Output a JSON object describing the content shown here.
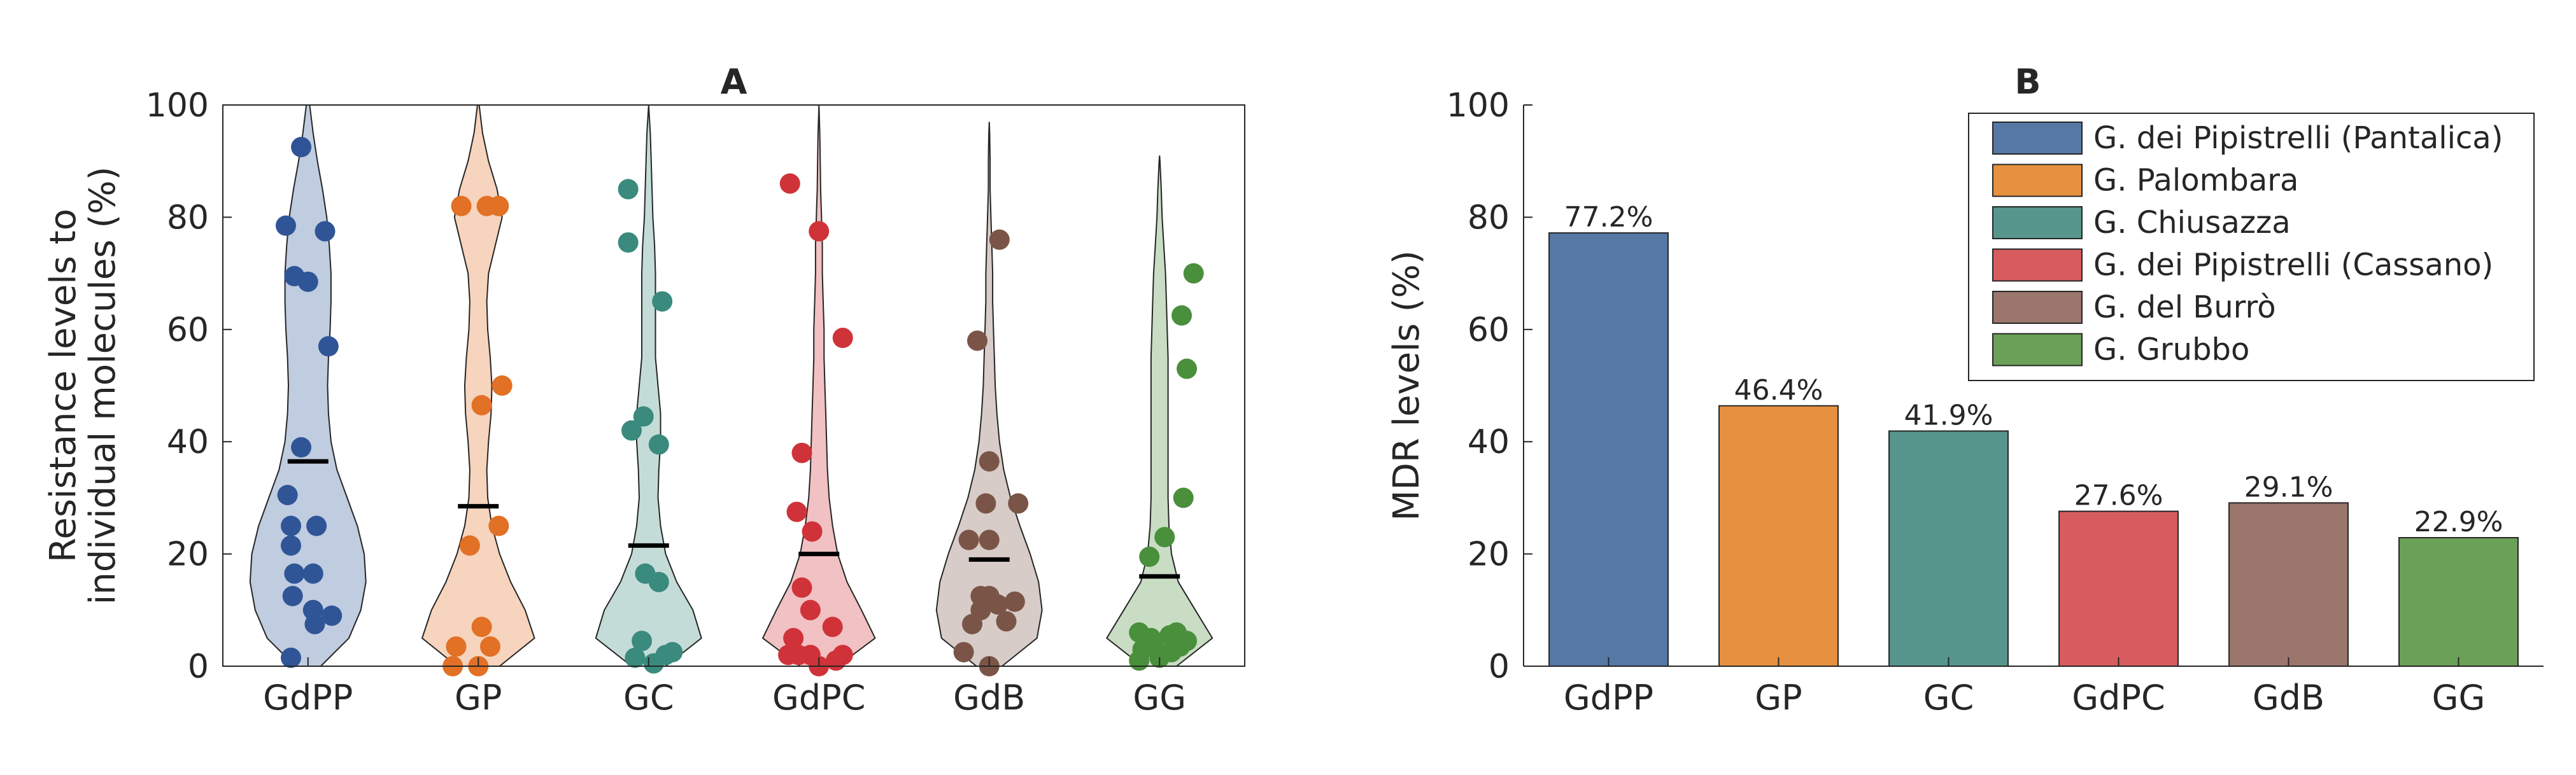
{
  "chart_data": [
    {
      "panel": "A",
      "type": "violin",
      "title": "A",
      "xlabel": "",
      "ylabel_lines": [
        "Resistance levels to",
        "individual molecules (%)"
      ],
      "ylim": [
        0,
        100
      ],
      "yticks": [
        0,
        20,
        40,
        60,
        80,
        100
      ],
      "categories": [
        "GdPP",
        "GP",
        "GC",
        "GdPC",
        "GdB",
        "GG"
      ],
      "colors": [
        "#2f5597",
        "#e27025",
        "#3a8a7e",
        "#cf3339",
        "#7a5547",
        "#4a8f3c"
      ],
      "means": [
        36.5,
        28.5,
        21.5,
        20,
        19,
        16
      ],
      "violins": [
        {
          "y": [
            0,
            5,
            10,
            15,
            20,
            25,
            30,
            35,
            40,
            45,
            50,
            55,
            60,
            65,
            70,
            75,
            80,
            85,
            90,
            95,
            100
          ],
          "w": [
            0.15,
            0.48,
            0.62,
            0.68,
            0.66,
            0.58,
            0.46,
            0.34,
            0.27,
            0.24,
            0.23,
            0.24,
            0.26,
            0.27,
            0.27,
            0.25,
            0.22,
            0.17,
            0.11,
            0.06,
            0.02
          ]
        },
        {
          "y": [
            0,
            5,
            10,
            15,
            20,
            25,
            30,
            35,
            40,
            45,
            50,
            55,
            60,
            65,
            70,
            75,
            80,
            85,
            90,
            95,
            100
          ],
          "w": [
            0.25,
            0.66,
            0.55,
            0.38,
            0.25,
            0.16,
            0.11,
            0.1,
            0.12,
            0.15,
            0.16,
            0.14,
            0.11,
            0.1,
            0.12,
            0.2,
            0.28,
            0.22,
            0.12,
            0.05,
            0.01
          ]
        },
        {
          "y": [
            0,
            5,
            10,
            15,
            20,
            25,
            30,
            35,
            40,
            45,
            50,
            55,
            60,
            65,
            70,
            75,
            80,
            85,
            90,
            95,
            100
          ],
          "w": [
            0.2,
            0.62,
            0.52,
            0.33,
            0.2,
            0.14,
            0.11,
            0.12,
            0.14,
            0.14,
            0.11,
            0.08,
            0.08,
            0.08,
            0.08,
            0.07,
            0.05,
            0.04,
            0.03,
            0.02,
            0.0
          ]
        },
        {
          "y": [
            0,
            5,
            10,
            15,
            20,
            25,
            30,
            35,
            40,
            45,
            50,
            55,
            60,
            65,
            70,
            75,
            80,
            85,
            90,
            95,
            100
          ],
          "w": [
            0.22,
            0.66,
            0.5,
            0.33,
            0.22,
            0.16,
            0.12,
            0.1,
            0.09,
            0.08,
            0.07,
            0.06,
            0.06,
            0.05,
            0.04,
            0.04,
            0.03,
            0.02,
            0.015,
            0.01,
            0.0
          ]
        },
        {
          "y": [
            0,
            5,
            10,
            15,
            20,
            25,
            30,
            35,
            40,
            45,
            50,
            55,
            60,
            65,
            70,
            75,
            80,
            85,
            90,
            95,
            97
          ],
          "w": [
            0.15,
            0.56,
            0.62,
            0.58,
            0.48,
            0.36,
            0.25,
            0.17,
            0.12,
            0.09,
            0.07,
            0.06,
            0.05,
            0.04,
            0.04,
            0.03,
            0.02,
            0.01,
            0.01,
            0.005,
            0.0
          ]
        },
        {
          "y": [
            0,
            5,
            10,
            15,
            20,
            25,
            30,
            35,
            40,
            45,
            50,
            55,
            60,
            65,
            70,
            75,
            80,
            85,
            90,
            91
          ],
          "w": [
            0.2,
            0.62,
            0.42,
            0.22,
            0.14,
            0.11,
            0.1,
            0.1,
            0.1,
            0.1,
            0.1,
            0.1,
            0.09,
            0.08,
            0.07,
            0.05,
            0.03,
            0.02,
            0.005,
            0.0
          ]
        }
      ],
      "points": [
        [
          [
            -0.1,
            1.5
          ],
          [
            0.04,
            7.5
          ],
          [
            0.14,
            9
          ],
          [
            0.03,
            10
          ],
          [
            -0.09,
            12.5
          ],
          [
            -0.08,
            16.5
          ],
          [
            0.03,
            16.5
          ],
          [
            -0.1,
            21.5
          ],
          [
            -0.1,
            25
          ],
          [
            0.05,
            25
          ],
          [
            -0.12,
            30.5
          ],
          [
            -0.04,
            39
          ],
          [
            0.12,
            57
          ],
          [
            -0.08,
            69.5
          ],
          [
            0.0,
            68.5
          ],
          [
            -0.13,
            78.5
          ],
          [
            0.1,
            77.5
          ],
          [
            -0.04,
            92.5
          ]
        ],
        [
          [
            -0.15,
            0
          ],
          [
            0.0,
            0
          ],
          [
            -0.13,
            3.5
          ],
          [
            0.07,
            3.5
          ],
          [
            0.02,
            7
          ],
          [
            -0.05,
            21.5
          ],
          [
            0.12,
            25
          ],
          [
            0.02,
            46.5
          ],
          [
            0.14,
            50
          ],
          [
            -0.1,
            82
          ],
          [
            0.05,
            82
          ],
          [
            0.12,
            82
          ]
        ],
        [
          [
            -0.08,
            1.5
          ],
          [
            0.03,
            0.5
          ],
          [
            0.1,
            2
          ],
          [
            0.14,
            2.5
          ],
          [
            -0.04,
            4.5
          ],
          [
            -0.02,
            16.5
          ],
          [
            0.06,
            15
          ],
          [
            -0.1,
            42
          ],
          [
            -0.03,
            44.5
          ],
          [
            0.06,
            39.5
          ],
          [
            0.08,
            65
          ],
          [
            -0.12,
            75.5
          ],
          [
            -0.12,
            85
          ]
        ],
        [
          [
            -0.18,
            2
          ],
          [
            -0.12,
            2
          ],
          [
            -0.05,
            2
          ],
          [
            0.0,
            0
          ],
          [
            0.1,
            1
          ],
          [
            0.14,
            2
          ],
          [
            0.08,
            7
          ],
          [
            -0.15,
            5
          ],
          [
            -0.05,
            10
          ],
          [
            -0.1,
            14
          ],
          [
            -0.04,
            24
          ],
          [
            -0.13,
            27.5
          ],
          [
            -0.1,
            38
          ],
          [
            0.0,
            77.5
          ],
          [
            -0.17,
            86
          ],
          [
            0.14,
            58.5
          ]
        ],
        [
          [
            -0.15,
            2.5
          ],
          [
            0.0,
            0
          ],
          [
            -0.1,
            7.5
          ],
          [
            0.1,
            8
          ],
          [
            -0.05,
            10
          ],
          [
            0.05,
            11
          ],
          [
            0.15,
            11.5
          ],
          [
            0.0,
            12.5
          ],
          [
            -0.05,
            12.5
          ],
          [
            -0.12,
            22.5
          ],
          [
            0.0,
            22.5
          ],
          [
            -0.02,
            29
          ],
          [
            0.17,
            29
          ],
          [
            0.0,
            36.5
          ],
          [
            -0.07,
            58
          ],
          [
            0.06,
            76
          ]
        ],
        [
          [
            -0.12,
            1
          ],
          [
            0.0,
            1.5
          ],
          [
            0.07,
            2.5
          ],
          [
            -0.1,
            3
          ],
          [
            -0.03,
            3.5
          ],
          [
            0.12,
            3.5
          ],
          [
            0.16,
            4.5
          ],
          [
            -0.05,
            5
          ],
          [
            0.06,
            5.5
          ],
          [
            -0.12,
            6
          ],
          [
            0.1,
            6
          ],
          [
            -0.06,
            19.5
          ],
          [
            0.03,
            23
          ],
          [
            0.14,
            30
          ],
          [
            0.16,
            53
          ],
          [
            0.13,
            62.5
          ],
          [
            0.2,
            70
          ]
        ]
      ]
    },
    {
      "panel": "B",
      "type": "bar",
      "title": "B",
      "xlabel": "",
      "ylabel": "MDR levels (%)",
      "ylim": [
        0,
        100
      ],
      "yticks": [
        0,
        20,
        40,
        60,
        80,
        100
      ],
      "categories": [
        "GdPP",
        "GP",
        "GC",
        "GdPC",
        "GdB",
        "GG"
      ],
      "values": [
        77.2,
        46.4,
        41.9,
        27.6,
        29.1,
        22.9
      ],
      "data_labels": [
        "77.2%",
        "46.4%",
        "41.9%",
        "27.6%",
        "29.1%",
        "22.9%"
      ],
      "colors": [
        "#5578a5",
        "#e69140",
        "#56968c",
        "#d75c5e",
        "#9a766c",
        "#6aa057"
      ],
      "legend_position": "top-right",
      "legend": [
        "G. dei Pipistrelli (Pantalica)",
        "G. Palombara",
        "G. Chiusazza",
        "G. dei Pipistrelli (Cassano)",
        "G. del Burrò",
        "G. Grubbo"
      ]
    }
  ]
}
